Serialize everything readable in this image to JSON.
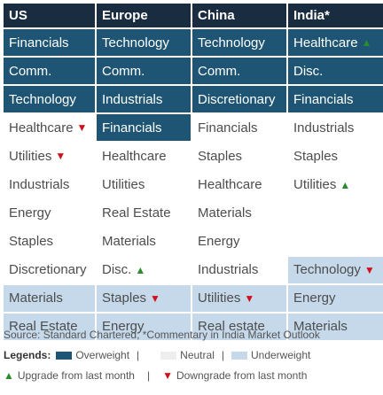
{
  "headers": [
    "US",
    "Europe",
    "China",
    "India*"
  ],
  "rows": [
    [
      {
        "text": "Financials",
        "status": "ow"
      },
      {
        "text": "Technology",
        "status": "ow"
      },
      {
        "text": "Technology",
        "status": "ow"
      },
      {
        "text": "Healthcare",
        "status": "ow",
        "arrow": "up"
      }
    ],
    [
      {
        "text": "Comm.",
        "status": "ow"
      },
      {
        "text": "Comm.",
        "status": "ow"
      },
      {
        "text": "Comm.",
        "status": "ow"
      },
      {
        "text": "Disc.",
        "status": "ow"
      }
    ],
    [
      {
        "text": "Technology",
        "status": "ow"
      },
      {
        "text": "Industrials",
        "status": "ow"
      },
      {
        "text": "Discretionary",
        "status": "ow"
      },
      {
        "text": "Financials",
        "status": "ow"
      }
    ],
    [
      {
        "text": "Healthcare",
        "status": "neu",
        "arrow": "down"
      },
      {
        "text": "Financials",
        "status": "ow"
      },
      {
        "text": "Financials",
        "status": "neu"
      },
      {
        "text": "Industrials",
        "status": "neu"
      }
    ],
    [
      {
        "text": "Utilities",
        "status": "neu",
        "arrow": "down"
      },
      {
        "text": "Healthcare",
        "status": "neu"
      },
      {
        "text": "Staples",
        "status": "neu"
      },
      {
        "text": "Staples",
        "status": "neu"
      }
    ],
    [
      {
        "text": "Industrials",
        "status": "neu"
      },
      {
        "text": "Utilities",
        "status": "neu"
      },
      {
        "text": "Healthcare",
        "status": "neu"
      },
      {
        "text": "Utilities",
        "status": "neu",
        "arrow": "up"
      }
    ],
    [
      {
        "text": "Energy",
        "status": "neu"
      },
      {
        "text": "Real Estate",
        "status": "neu"
      },
      {
        "text": "Materials",
        "status": "neu"
      },
      {
        "text": "",
        "status": "neu"
      }
    ],
    [
      {
        "text": "Staples",
        "status": "neu"
      },
      {
        "text": "Materials",
        "status": "neu"
      },
      {
        "text": "Energy",
        "status": "neu"
      },
      {
        "text": "",
        "status": "neu"
      }
    ],
    [
      {
        "text": "Discretionary",
        "status": "neu"
      },
      {
        "text": "Disc.",
        "status": "neu",
        "arrow": "up"
      },
      {
        "text": "Industrials",
        "status": "neu"
      },
      {
        "text": "Technology",
        "status": "uw",
        "arrow": "down"
      }
    ],
    [
      {
        "text": "Materials",
        "status": "uw"
      },
      {
        "text": "Staples",
        "status": "uw",
        "arrow": "down"
      },
      {
        "text": "Utilities",
        "status": "uw",
        "arrow": "down"
      },
      {
        "text": "Energy",
        "status": "uw"
      }
    ],
    [
      {
        "text": "Real Estate",
        "status": "uw"
      },
      {
        "text": "Energy",
        "status": "uw"
      },
      {
        "text": "Real estate",
        "status": "uw"
      },
      {
        "text": "Materials",
        "status": "uw"
      }
    ]
  ],
  "footer": {
    "source": "Source: Standard Chartered; *Commentary in India Market Outlook",
    "legend_title": "Legends:",
    "overweight": "Overweight",
    "neutral": "Neutral",
    "underweight": "Underweight",
    "sep": "|",
    "up_glyph": "▲",
    "down_glyph": "▼",
    "upgrade": "Upgrade from last month",
    "downgrade": "Downgrade from last month"
  },
  "colors": {
    "overweight": "#1e5574",
    "neutral": "#ffffff",
    "underweight": "#c5d9ea",
    "header": "#1a2c40",
    "up": "#2a8c2a",
    "down": "#d0101a"
  }
}
